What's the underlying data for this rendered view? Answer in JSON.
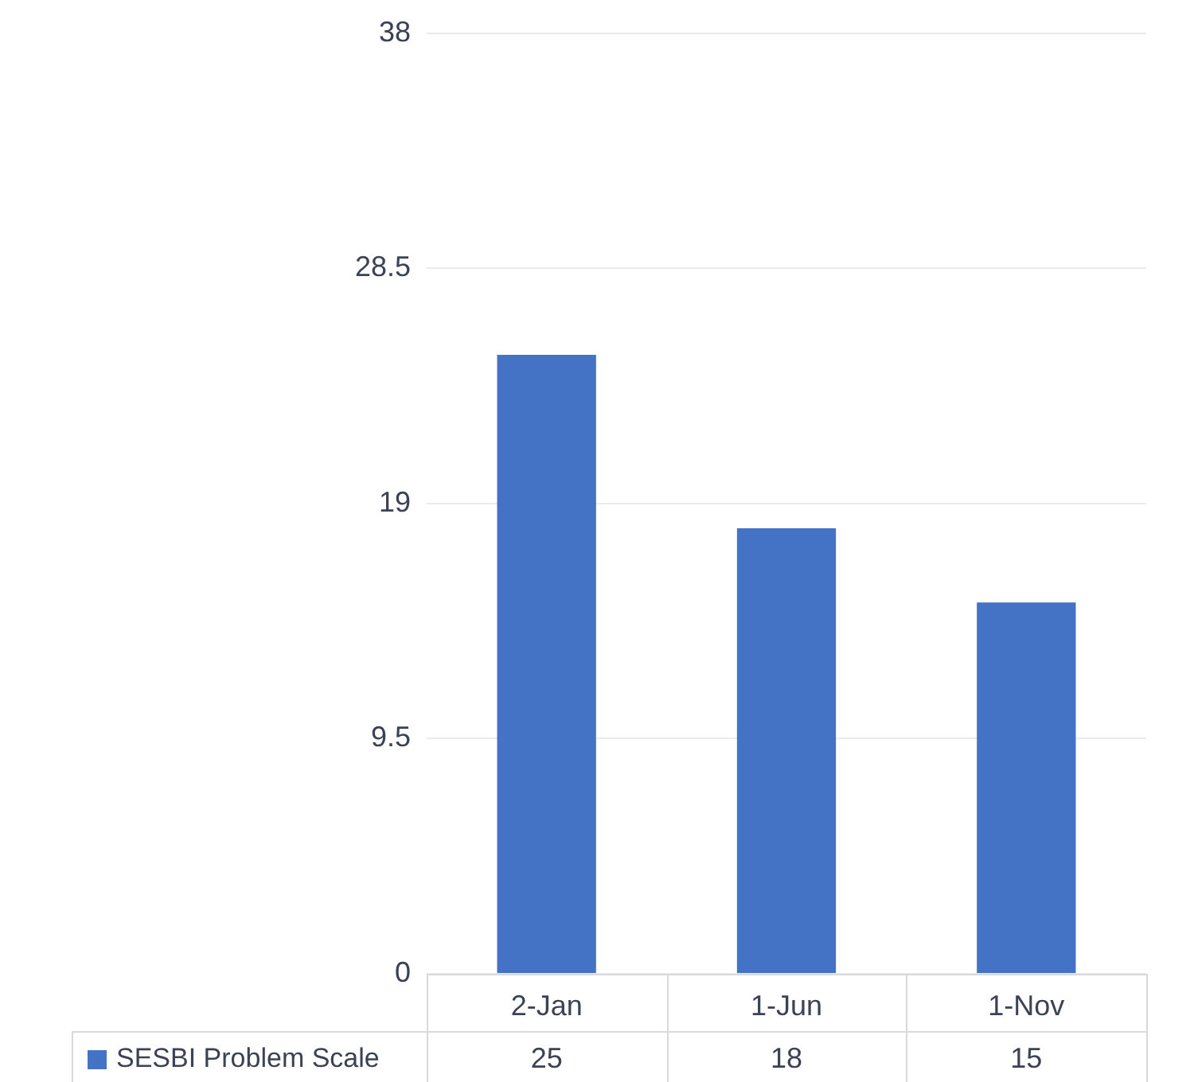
{
  "chart_data": {
    "type": "bar",
    "categories": [
      "2-Jan",
      "1-Jun",
      "1-Nov"
    ],
    "series": [
      {
        "name": "SESBI Problem Scale",
        "color": "#4472c4",
        "values": [
          25,
          18,
          15
        ]
      }
    ],
    "ylim": [
      0,
      38
    ],
    "yticks": [
      0,
      9.5,
      19,
      28.5,
      38
    ],
    "grid": "y",
    "legend": "bottom",
    "data_labels": true
  }
}
